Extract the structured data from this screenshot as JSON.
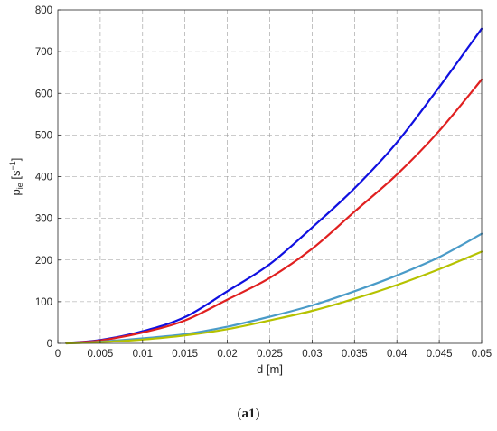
{
  "chart_data": {
    "type": "line",
    "title": "",
    "xlabel": "d [m]",
    "ylabel": {
      "base": "p",
      "sub": "ie",
      "unit_open": " [s",
      "unit_sup": "−1",
      "unit_close": "]"
    },
    "xlim": [
      0,
      0.05
    ],
    "ylim": [
      0,
      800
    ],
    "xticks": [
      0,
      0.005,
      0.01,
      0.015,
      0.02,
      0.025,
      0.03,
      0.035,
      0.04,
      0.045,
      0.05
    ],
    "xtick_labels": [
      "0",
      "0.005",
      "0.01",
      "0.015",
      "0.02",
      "0.025",
      "0.03",
      "0.035",
      "0.04",
      "0.045",
      "0.05"
    ],
    "yticks": [
      0,
      100,
      200,
      300,
      400,
      500,
      600,
      700,
      800
    ],
    "ytick_labels": [
      "0",
      "100",
      "200",
      "300",
      "400",
      "500",
      "600",
      "700",
      "800"
    ],
    "grid": true,
    "legend": null,
    "series": [
      {
        "color": "#1010e0",
        "x": [
          0.001,
          0.005,
          0.01,
          0.015,
          0.02,
          0.025,
          0.03,
          0.035,
          0.04,
          0.045,
          0.05
        ],
        "y": [
          1,
          8,
          29,
          63,
          125,
          190,
          278,
          372,
          482,
          615,
          755
        ]
      },
      {
        "color": "#e02020",
        "x": [
          0.001,
          0.005,
          0.01,
          0.015,
          0.02,
          0.025,
          0.03,
          0.035,
          0.04,
          0.045,
          0.05
        ],
        "y": [
          1,
          7,
          26,
          55,
          105,
          157,
          227,
          316,
          405,
          510,
          633
        ]
      },
      {
        "color": "#4a9bc8",
        "x": [
          0.001,
          0.005,
          0.01,
          0.015,
          0.02,
          0.025,
          0.03,
          0.035,
          0.04,
          0.045,
          0.05
        ],
        "y": [
          0,
          4,
          12,
          22,
          40,
          64,
          91,
          125,
          163,
          207,
          263
        ]
      },
      {
        "color": "#b5c200",
        "x": [
          0.001,
          0.005,
          0.01,
          0.015,
          0.02,
          0.025,
          0.03,
          0.035,
          0.04,
          0.045,
          0.05
        ],
        "y": [
          0,
          3,
          9,
          19,
          34,
          55,
          78,
          107,
          140,
          178,
          220
        ]
      }
    ]
  },
  "caption": "a1"
}
